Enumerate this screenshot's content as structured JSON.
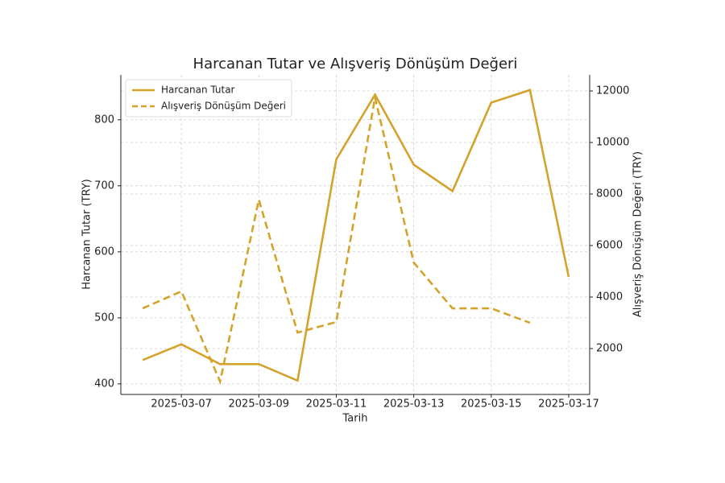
{
  "chart_data": {
    "type": "line",
    "title": "Harcanan Tutar ve Alışveriş Dönüşüm Değeri",
    "xlabel": "Tarih",
    "ylabel": "Harcanan Tutar (TRY)",
    "y2label": "Alışveriş Dönüşüm Değeri (TRY)",
    "x": [
      "2025-03-06",
      "2025-03-07",
      "2025-03-08",
      "2025-03-09",
      "2025-03-10",
      "2025-03-11",
      "2025-03-12",
      "2025-03-13",
      "2025-03-14",
      "2025-03-15",
      "2025-03-16",
      "2025-03-17"
    ],
    "series": [
      {
        "name": "Harcanan Tutar",
        "color": "#d4a32c",
        "dash": "solid",
        "values": [
          436,
          460,
          430,
          430,
          405,
          740,
          838,
          732,
          692,
          826,
          845,
          562
        ]
      },
      {
        "name": "Alışveriş Dönüşüm Değeri",
        "color": "#d4a32c",
        "dash": "dashed",
        "axis": "y2",
        "values": [
          3560,
          4220,
          720,
          7780,
          2620,
          3030,
          11750,
          5340,
          3560,
          3560,
          3000,
          null
        ]
      }
    ],
    "xlim": [
      "2025-03-05T10:30:00Z",
      "2025-03-17T13:00:00Z"
    ],
    "xticks": [
      "2025-03-07",
      "2025-03-09",
      "2025-03-11",
      "2025-03-13",
      "2025-03-15",
      "2025-03-17"
    ],
    "ylim": [
      384,
      868
    ],
    "yticks": [
      400,
      500,
      600,
      700,
      800
    ],
    "y2lim": [
      218,
      12625
    ],
    "y2ticks": [
      2000,
      4000,
      6000,
      8000,
      10000,
      12000
    ],
    "grid": true,
    "legend": "upper-left"
  }
}
